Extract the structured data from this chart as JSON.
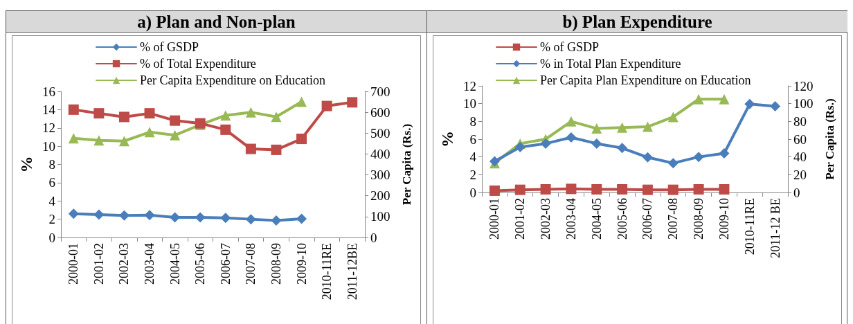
{
  "chart_data": [
    {
      "type": "line",
      "title": "a) Plan and Non-plan",
      "ylabel": "%",
      "y2label": "Per Capita (Rs.)",
      "categories": [
        "2000-01",
        "2001-02",
        "2002-03",
        "2003-04",
        "2004-05",
        "2005-06",
        "2006-07",
        "2007-08",
        "2008-09",
        "2009-10",
        "2010-11RE",
        "2011-12BE"
      ],
      "series": [
        {
          "name": "% of GSDP",
          "color": "#4a7ebb",
          "marker": "diamond",
          "values": [
            2.6,
            2.5,
            2.4,
            2.45,
            2.2,
            2.2,
            2.15,
            2.0,
            1.85,
            2.05,
            null,
            null
          ]
        },
        {
          "name": "% of Total Expenditure",
          "color": "#be4b48",
          "marker": "square",
          "values": [
            14.0,
            13.6,
            13.2,
            13.6,
            12.8,
            12.5,
            11.8,
            9.7,
            9.6,
            10.8,
            14.4,
            14.8
          ]
        },
        {
          "name": "Per Capita Expenditure on Education",
          "color": "#98b954",
          "marker": "triangle",
          "axis": "y2",
          "values": [
            475,
            465,
            462,
            505,
            490,
            540,
            585,
            600,
            578,
            650,
            null,
            null
          ]
        }
      ],
      "ylim": [
        0,
        16
      ],
      "yticks": [
        0,
        2,
        4,
        6,
        8,
        10,
        12,
        14,
        16
      ],
      "y2lim": [
        0,
        700
      ],
      "y2ticks": [
        0,
        100,
        200,
        300,
        400,
        500,
        600,
        700
      ],
      "legend": "top",
      "grid": false
    },
    {
      "type": "line",
      "title": "b) Plan Expenditure",
      "ylabel": "%",
      "y2label": "Per Capita (Rs.)",
      "categories": [
        "2000-01",
        "2001-02",
        "2002-03",
        "2003-04",
        "2004-05",
        "2005-06",
        "2006-07",
        "2007-08",
        "2008-09",
        "2009-10",
        "2010-11RE",
        "2011-12 BE"
      ],
      "series": [
        {
          "name": "% of GSDP",
          "color": "#be4b48",
          "marker": "square",
          "values": [
            0.2,
            0.3,
            0.35,
            0.4,
            0.35,
            0.35,
            0.3,
            0.3,
            0.35,
            0.35,
            null,
            null
          ]
        },
        {
          "name": "% in Total Plan Expenditure",
          "color": "#4a7ebb",
          "marker": "diamond",
          "values": [
            3.5,
            5.1,
            5.5,
            6.2,
            5.5,
            5.0,
            3.95,
            3.3,
            4.0,
            4.4,
            9.95,
            9.7
          ]
        },
        {
          "name": "Per Capita Plan Expenditure on Education",
          "color": "#98b954",
          "marker": "triangle",
          "axis": "y2",
          "values": [
            33,
            55,
            60,
            80,
            72,
            73,
            74,
            85,
            105,
            105,
            null,
            null
          ]
        }
      ],
      "ylim": [
        0,
        12
      ],
      "yticks": [
        0,
        2,
        4,
        6,
        8,
        10,
        12
      ],
      "y2lim": [
        0,
        120
      ],
      "y2ticks": [
        0,
        20,
        40,
        60,
        80,
        100,
        120
      ],
      "legend": "top",
      "grid": false
    }
  ]
}
